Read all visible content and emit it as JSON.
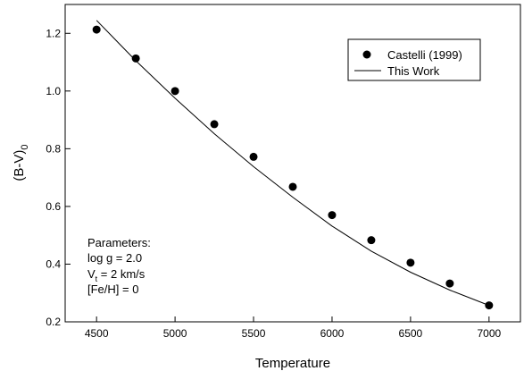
{
  "chart_data": {
    "type": "scatter",
    "xlabel": "Temperature",
    "ylabel": {
      "main": "(B-V)",
      "sub": "0"
    },
    "xlim": [
      4300,
      7200
    ],
    "ylim": [
      0.2,
      1.3
    ],
    "x_ticks": [
      4500,
      5000,
      5500,
      6000,
      6500,
      7000
    ],
    "y_ticks": [
      0.2,
      0.4,
      0.6,
      0.8,
      1.0,
      1.2
    ],
    "x_tick_labels": [
      "4500",
      "5000",
      "5500",
      "6000",
      "6500",
      "7000"
    ],
    "y_tick_labels": [
      "0.2",
      "0.4",
      "0.6",
      "0.8",
      "1.0",
      "1.2"
    ],
    "grid": false,
    "legend_position": "top-right",
    "series": [
      {
        "name": "Castelli (1999)",
        "kind": "points",
        "x": [
          4500,
          4750,
          5000,
          5250,
          5500,
          5750,
          6000,
          6250,
          6500,
          6750,
          7000
        ],
        "y": [
          1.213,
          1.113,
          1.0,
          0.885,
          0.772,
          0.668,
          0.57,
          0.483,
          0.405,
          0.333,
          0.257
        ]
      },
      {
        "name": "This Work",
        "kind": "line",
        "x": [
          4500,
          4750,
          5000,
          5250,
          5500,
          5750,
          6000,
          6250,
          6500,
          6750,
          7000
        ],
        "y": [
          1.245,
          1.105,
          0.975,
          0.852,
          0.738,
          0.632,
          0.532,
          0.445,
          0.372,
          0.31,
          0.257
        ]
      }
    ],
    "annotation": {
      "title": "Parameters:",
      "logg": "log g = 2.0",
      "vt_main": "V",
      "vt_sub": "t",
      "vt_rest": " = 2 km/s",
      "feh": "[Fe/H] = 0"
    }
  }
}
